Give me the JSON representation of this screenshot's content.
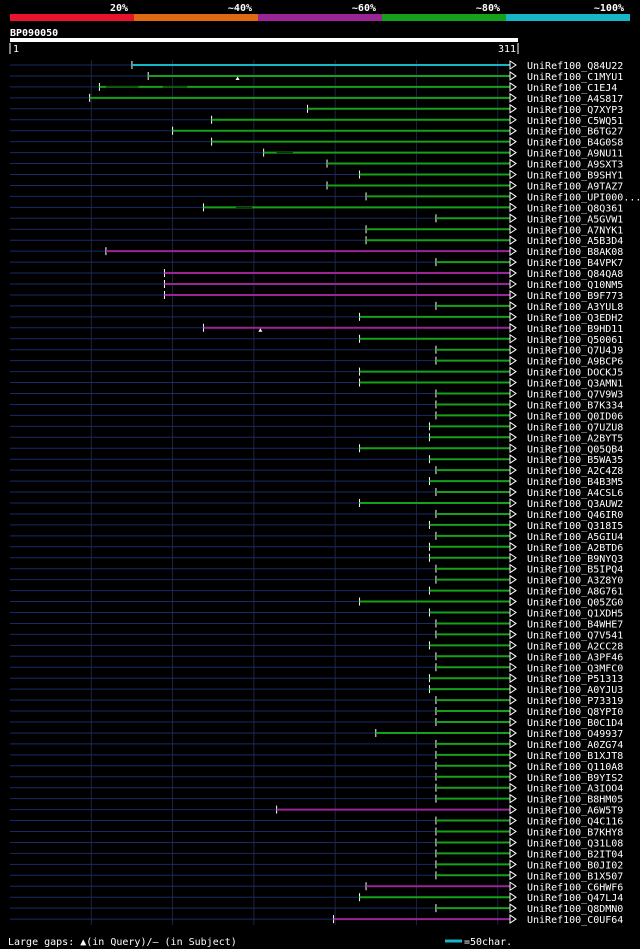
{
  "legend": {
    "bands": [
      {
        "label": "20%",
        "color": "#e8142d"
      },
      {
        "label": "~40%",
        "color": "#e06a10"
      },
      {
        "label": "~60%",
        "color": "#9b2596"
      },
      {
        "label": "~80%",
        "color": "#16a11a"
      },
      {
        "label": "~100%",
        "color": "#16b6c6"
      }
    ]
  },
  "query": {
    "name": "BP090050",
    "start_label": "1",
    "end_label": "311",
    "length": 311
  },
  "footer": {
    "gaps_text": "Large gaps: ▲(in Query)/– (in Subject)",
    "scale_text": "=50char.",
    "scale_color": "#16b6c6"
  },
  "hits": [
    {
      "name": "UniRef100_Q84U22",
      "start": 76,
      "color": "#16b6c6",
      "gaps": [],
      "mark": null
    },
    {
      "name": "UniRef100_C1MYU1",
      "start": 86,
      "color": "#16a11a",
      "gaps": [],
      "mark": 141
    },
    {
      "name": "UniRef100_C1EJ4",
      "start": 56,
      "color": "#16a11a",
      "gaps": [
        [
          60,
          80
        ],
        [
          95,
          110
        ]
      ],
      "mark": null
    },
    {
      "name": "UniRef100_A4S817",
      "start": 50,
      "color": "#16a11a",
      "gaps": [],
      "mark": null
    },
    {
      "name": "UniRef100_Q7XYP3",
      "start": 184,
      "color": "#16a11a",
      "gaps": [],
      "mark": null
    },
    {
      "name": "UniRef100_C5WQ51",
      "start": 125,
      "color": "#16a11a",
      "gaps": [],
      "mark": null
    },
    {
      "name": "UniRef100_B6TG27",
      "start": 101,
      "color": "#16a11a",
      "gaps": [],
      "mark": null
    },
    {
      "name": "UniRef100_B4G0S8",
      "start": 125,
      "color": "#16a11a",
      "gaps": [],
      "mark": null
    },
    {
      "name": "UniRef100_A9NU11",
      "start": 157,
      "color": "#16a11a",
      "gaps": [
        [
          165,
          175
        ]
      ],
      "mark": null
    },
    {
      "name": "UniRef100_A9SXT3",
      "start": 196,
      "color": "#16a11a",
      "gaps": [],
      "mark": null
    },
    {
      "name": "UniRef100_B9SHY1",
      "start": 216,
      "color": "#16a11a",
      "gaps": [],
      "mark": null
    },
    {
      "name": "UniRef100_A9TAZ7",
      "start": 196,
      "color": "#16a11a",
      "gaps": [],
      "mark": null
    },
    {
      "name": "UniRef100_UPI000...",
      "start": 220,
      "color": "#16a11a",
      "gaps": [],
      "mark": null
    },
    {
      "name": "UniRef100_Q8Q361",
      "start": 120,
      "color": "#16a11a",
      "gaps": [
        [
          140,
          150
        ]
      ],
      "mark": null
    },
    {
      "name": "UniRef100_A5GVW1",
      "start": 263,
      "color": "#16a11a",
      "gaps": [],
      "mark": null
    },
    {
      "name": "UniRef100_A7NYK1",
      "start": 220,
      "color": "#16a11a",
      "gaps": [],
      "mark": null
    },
    {
      "name": "UniRef100_A5B3D4",
      "start": 220,
      "color": "#16a11a",
      "gaps": [],
      "mark": null
    },
    {
      "name": "UniRef100_B8AK08",
      "start": 60,
      "color": "#9b2596",
      "gaps": [],
      "mark": null
    },
    {
      "name": "UniRef100_B4VPK7",
      "start": 263,
      "color": "#16a11a",
      "gaps": [],
      "mark": null
    },
    {
      "name": "UniRef100_Q84QA8",
      "start": 96,
      "color": "#9b2596",
      "gaps": [],
      "mark": null
    },
    {
      "name": "UniRef100_Q10NM5",
      "start": 96,
      "color": "#9b2596",
      "gaps": [],
      "mark": null
    },
    {
      "name": "UniRef100_B9F773",
      "start": 96,
      "color": "#9b2596",
      "gaps": [],
      "mark": null
    },
    {
      "name": "UniRef100_A3YUL8",
      "start": 263,
      "color": "#16a11a",
      "gaps": [],
      "mark": null
    },
    {
      "name": "UniRef100_Q3EDH2",
      "start": 216,
      "color": "#16a11a",
      "gaps": [],
      "mark": null
    },
    {
      "name": "UniRef100_B9HD11",
      "start": 120,
      "color": "#9b2596",
      "gaps": [],
      "mark": 155
    },
    {
      "name": "UniRef100_Q50061",
      "start": 216,
      "color": "#16a11a",
      "gaps": [],
      "mark": null
    },
    {
      "name": "UniRef100_Q7U4J9",
      "start": 263,
      "color": "#16a11a",
      "gaps": [],
      "mark": null
    },
    {
      "name": "UniRef100_A9BCP6",
      "start": 263,
      "color": "#16a11a",
      "gaps": [],
      "mark": null
    },
    {
      "name": "UniRef100_DOCKJ5",
      "start": 216,
      "color": "#16a11a",
      "gaps": [],
      "mark": null
    },
    {
      "name": "UniRef100_Q3AMN1",
      "start": 216,
      "color": "#16a11a",
      "gaps": [],
      "mark": null
    },
    {
      "name": "UniRef100_Q7V9W3",
      "start": 263,
      "color": "#16a11a",
      "gaps": [],
      "mark": null
    },
    {
      "name": "UniRef100_B7K334",
      "start": 263,
      "color": "#16a11a",
      "gaps": [],
      "mark": null
    },
    {
      "name": "UniRef100_Q0ID06",
      "start": 263,
      "color": "#16a11a",
      "gaps": [],
      "mark": null
    },
    {
      "name": "UniRef100_Q7UZU8",
      "start": 259,
      "color": "#16a11a",
      "gaps": [],
      "mark": null
    },
    {
      "name": "UniRef100_A2BYT5",
      "start": 259,
      "color": "#16a11a",
      "gaps": [],
      "mark": null
    },
    {
      "name": "UniRef100_Q05QB4",
      "start": 216,
      "color": "#16a11a",
      "gaps": [],
      "mark": null
    },
    {
      "name": "UniRef100_B5WA35",
      "start": 259,
      "color": "#16a11a",
      "gaps": [],
      "mark": null
    },
    {
      "name": "UniRef100_A2C4Z8",
      "start": 263,
      "color": "#16a11a",
      "gaps": [],
      "mark": null
    },
    {
      "name": "UniRef100_B4B3M5",
      "start": 259,
      "color": "#16a11a",
      "gaps": [],
      "mark": null
    },
    {
      "name": "UniRef100_A4CSL6",
      "start": 263,
      "color": "#16a11a",
      "gaps": [],
      "mark": null
    },
    {
      "name": "UniRef100_Q3AUW2",
      "start": 216,
      "color": "#16a11a",
      "gaps": [],
      "mark": null
    },
    {
      "name": "UniRef100_Q46IR0",
      "start": 263,
      "color": "#16a11a",
      "gaps": [],
      "mark": null
    },
    {
      "name": "UniRef100_Q318I5",
      "start": 259,
      "color": "#16a11a",
      "gaps": [],
      "mark": null
    },
    {
      "name": "UniRef100_A5GIU4",
      "start": 263,
      "color": "#16a11a",
      "gaps": [],
      "mark": null
    },
    {
      "name": "UniRef100_A2BTD6",
      "start": 259,
      "color": "#16a11a",
      "gaps": [],
      "mark": null
    },
    {
      "name": "UniRef100_B9NYQ3",
      "start": 259,
      "color": "#16a11a",
      "gaps": [],
      "mark": null
    },
    {
      "name": "UniRef100_B5IPQ4",
      "start": 263,
      "color": "#16a11a",
      "gaps": [],
      "mark": null
    },
    {
      "name": "UniRef100_A3Z8Y0",
      "start": 263,
      "color": "#16a11a",
      "gaps": [],
      "mark": null
    },
    {
      "name": "UniRef100_A8G761",
      "start": 259,
      "color": "#16a11a",
      "gaps": [],
      "mark": null
    },
    {
      "name": "UniRef100_Q05ZG0",
      "start": 216,
      "color": "#16a11a",
      "gaps": [],
      "mark": null
    },
    {
      "name": "UniRef100_Q1XDH5",
      "start": 259,
      "color": "#16a11a",
      "gaps": [],
      "mark": null
    },
    {
      "name": "UniRef100_B4WHE7",
      "start": 263,
      "color": "#16a11a",
      "gaps": [],
      "mark": null
    },
    {
      "name": "UniRef100_Q7V541",
      "start": 263,
      "color": "#16a11a",
      "gaps": [],
      "mark": null
    },
    {
      "name": "UniRef100_A2CC28",
      "start": 259,
      "color": "#16a11a",
      "gaps": [],
      "mark": null
    },
    {
      "name": "UniRef100_A3PF46",
      "start": 263,
      "color": "#16a11a",
      "gaps": [],
      "mark": null
    },
    {
      "name": "UniRef100_Q3MFC0",
      "start": 263,
      "color": "#16a11a",
      "gaps": [],
      "mark": null
    },
    {
      "name": "UniRef100_P51313",
      "start": 259,
      "color": "#16a11a",
      "gaps": [],
      "mark": null
    },
    {
      "name": "UniRef100_A0YJU3",
      "start": 259,
      "color": "#16a11a",
      "gaps": [],
      "mark": null
    },
    {
      "name": "UniRef100_P73319",
      "start": 263,
      "color": "#16a11a",
      "gaps": [],
      "mark": null
    },
    {
      "name": "UniRef100_Q8YPI0",
      "start": 263,
      "color": "#16a11a",
      "gaps": [],
      "mark": null
    },
    {
      "name": "UniRef100_B0C1D4",
      "start": 263,
      "color": "#16a11a",
      "gaps": [],
      "mark": null
    },
    {
      "name": "UniRef100_O49937",
      "start": 226,
      "color": "#16a11a",
      "gaps": [],
      "mark": null
    },
    {
      "name": "UniRef100_A0ZG74",
      "start": 263,
      "color": "#16a11a",
      "gaps": [],
      "mark": null
    },
    {
      "name": "UniRef100_B1XJT8",
      "start": 263,
      "color": "#16a11a",
      "gaps": [],
      "mark": null
    },
    {
      "name": "UniRef100_Q110A8",
      "start": 263,
      "color": "#16a11a",
      "gaps": [],
      "mark": null
    },
    {
      "name": "UniRef100_B9YIS2",
      "start": 263,
      "color": "#16a11a",
      "gaps": [],
      "mark": null
    },
    {
      "name": "UniRef100_A3IOO4",
      "start": 263,
      "color": "#16a11a",
      "gaps": [],
      "mark": null
    },
    {
      "name": "UniRef100_B8HM05",
      "start": 263,
      "color": "#16a11a",
      "gaps": [],
      "mark": null
    },
    {
      "name": "UniRef100_A6W5T9",
      "start": 165,
      "color": "#9b2596",
      "gaps": [],
      "mark": null
    },
    {
      "name": "UniRef100_Q4C116",
      "start": 263,
      "color": "#16a11a",
      "gaps": [],
      "mark": null
    },
    {
      "name": "UniRef100_B7KHY8",
      "start": 263,
      "color": "#16a11a",
      "gaps": [],
      "mark": null
    },
    {
      "name": "UniRef100_Q31L08",
      "start": 263,
      "color": "#16a11a",
      "gaps": [],
      "mark": null
    },
    {
      "name": "UniRef100_B2IT04",
      "start": 263,
      "color": "#16a11a",
      "gaps": [],
      "mark": null
    },
    {
      "name": "UniRef100_B0JI02",
      "start": 263,
      "color": "#16a11a",
      "gaps": [],
      "mark": null
    },
    {
      "name": "UniRef100_B1X507",
      "start": 263,
      "color": "#16a11a",
      "gaps": [],
      "mark": null
    },
    {
      "name": "UniRef100_C6HWF6",
      "start": 220,
      "color": "#9b2596",
      "gaps": [],
      "mark": null
    },
    {
      "name": "UniRef100_Q47LJ4",
      "start": 216,
      "color": "#16a11a",
      "gaps": [],
      "mark": null
    },
    {
      "name": "UniRef100_Q8DMN0",
      "start": 263,
      "color": "#16a11a",
      "gaps": [],
      "mark": null
    },
    {
      "name": "UniRef100_C0UF64",
      "start": 200,
      "color": "#9b2596",
      "gaps": [],
      "mark": null
    }
  ]
}
